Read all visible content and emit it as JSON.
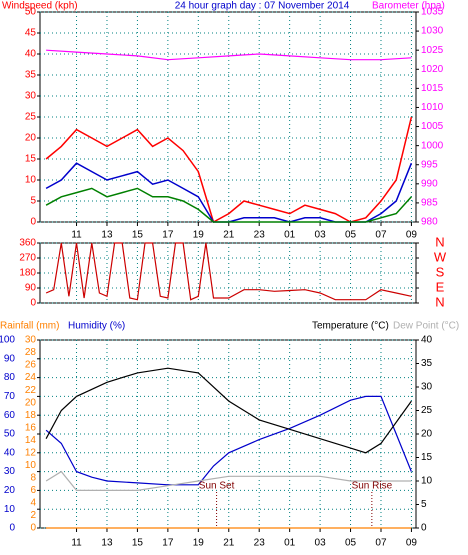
{
  "chart_data": [
    {
      "type": "line",
      "title": "24 hour graph day : 07 November 2014",
      "ylabel": "Windspeed (kph)",
      "y2label": "Barometer (hpa)",
      "xlim": [
        8.6,
        33.3
      ],
      "xticks": [
        11,
        13,
        15,
        17,
        19,
        21,
        23,
        {
          "value": 25,
          "label": "01"
        },
        {
          "value": 27,
          "label": "03"
        },
        {
          "value": 29,
          "label": "05"
        },
        {
          "value": 31,
          "label": "07"
        },
        {
          "value": 33,
          "label": "09"
        }
      ],
      "ylim": [
        0,
        50
      ],
      "yticks": [
        0,
        5,
        10,
        15,
        20,
        25,
        30,
        35,
        40,
        45,
        50
      ],
      "y2lim": [
        980,
        1035
      ],
      "y2ticks": [
        980,
        985,
        990,
        995,
        1000,
        1005,
        1010,
        1015,
        1020,
        1025,
        1030,
        1035
      ],
      "grid": true,
      "series": [
        {
          "color": "#ff0000",
          "x": [
            9,
            10,
            11,
            12,
            13,
            14,
            15,
            16,
            17,
            18,
            19,
            20,
            21,
            22,
            23,
            24,
            25,
            26,
            27,
            28,
            29,
            30,
            31,
            32,
            33
          ],
          "values": [
            15,
            18,
            22,
            20,
            18,
            20,
            22,
            18,
            20,
            17,
            12,
            0,
            2,
            5,
            4,
            3,
            2,
            4,
            3,
            2,
            0,
            1,
            5,
            10,
            25
          ]
        },
        {
          "color": "#0000cc",
          "x": [
            9,
            10,
            11,
            12,
            13,
            14,
            15,
            16,
            17,
            18,
            19,
            20,
            21,
            22,
            23,
            24,
            25,
            26,
            27,
            28,
            29,
            30,
            31,
            32,
            33
          ],
          "values": [
            8,
            10,
            14,
            12,
            10,
            11,
            12,
            9,
            10,
            8,
            6,
            0,
            0,
            1,
            1,
            1,
            0,
            1,
            1,
            0,
            0,
            0,
            2,
            5,
            14
          ]
        },
        {
          "color": "#008000",
          "x": [
            9,
            10,
            11,
            12,
            13,
            14,
            15,
            16,
            17,
            18,
            19,
            20,
            21,
            22,
            23,
            24,
            25,
            26,
            27,
            28,
            29,
            30,
            31,
            32,
            33
          ],
          "values": [
            4,
            6,
            7,
            8,
            6,
            7,
            8,
            6,
            6,
            5,
            3,
            0,
            0,
            0,
            0,
            0,
            0,
            0,
            0,
            0,
            0,
            0,
            1,
            2,
            6
          ]
        },
        {
          "color": "#ff00ff",
          "axis": "y2",
          "x": [
            9,
            11,
            13,
            15,
            17,
            19,
            21,
            23,
            25,
            27,
            29,
            31,
            33
          ],
          "values": [
            1025,
            1024.5,
            1024,
            1023.5,
            1022.5,
            1023,
            1023.5,
            1024,
            1023.5,
            1023,
            1022.5,
            1022.5,
            1023
          ]
        }
      ]
    },
    {
      "type": "line",
      "ylim": [
        0,
        360
      ],
      "yticks": [
        0,
        90,
        180,
        270,
        360
      ],
      "y2lim": [
        0,
        360
      ],
      "y2ticks": [
        {
          "value": 360,
          "label": "N"
        },
        {
          "value": 270,
          "label": "W"
        },
        {
          "value": 180,
          "label": "S"
        },
        {
          "value": 90,
          "label": "E"
        },
        {
          "value": 0,
          "label": "N"
        }
      ],
      "grid": true,
      "series": [
        {
          "color": "#cc0000",
          "x": [
            9,
            9.5,
            10,
            10.5,
            11,
            11.5,
            12,
            12.5,
            13,
            13.5,
            14,
            14.5,
            15,
            15.5,
            16,
            16.5,
            17,
            17.5,
            18,
            18.5,
            19,
            19.5,
            20,
            21,
            22,
            23,
            24,
            25,
            26,
            27,
            28,
            29,
            30,
            31,
            32,
            33
          ],
          "values": [
            60,
            80,
            360,
            40,
            360,
            30,
            360,
            60,
            40,
            360,
            360,
            30,
            20,
            360,
            360,
            40,
            30,
            360,
            360,
            20,
            40,
            360,
            30,
            30,
            80,
            80,
            70,
            75,
            80,
            60,
            20,
            20,
            20,
            80,
            60,
            40
          ]
        }
      ]
    },
    {
      "type": "line",
      "ylabel": "Humidity (%)",
      "y2label": "Temperature (°C)",
      "y3label": "Rainfall (mm)",
      "dewlabel": "Dew Point (°C)",
      "xlim": [
        8.6,
        33.3
      ],
      "xticks": [
        11,
        13,
        15,
        17,
        19,
        21,
        23,
        {
          "value": 25,
          "label": "01"
        },
        {
          "value": 27,
          "label": "03"
        },
        {
          "value": 29,
          "label": "05"
        },
        {
          "value": 31,
          "label": "07"
        },
        {
          "value": 33,
          "label": "09"
        }
      ],
      "ylim": [
        0,
        100
      ],
      "yticks": [
        0,
        10,
        20,
        30,
        40,
        50,
        60,
        70,
        80,
        90,
        100
      ],
      "y2lim": [
        0,
        40
      ],
      "y2ticks": [
        0,
        5,
        10,
        15,
        20,
        25,
        30,
        35,
        40
      ],
      "y3lim": [
        0,
        30
      ],
      "y3ticks": [
        0,
        2,
        4,
        6,
        8,
        10,
        12,
        14,
        16,
        18,
        20,
        22,
        24,
        26,
        28,
        30
      ],
      "grid": true,
      "annotations": [
        {
          "text": "Sun Set",
          "x": 20.2
        },
        {
          "text": "Sun Rise",
          "x": 30.4
        }
      ],
      "series": [
        {
          "color": "#0000cc",
          "x": [
            9,
            10,
            11,
            12,
            13,
            15,
            17,
            19,
            20,
            21,
            23,
            25,
            27,
            29,
            30,
            31,
            32,
            33
          ],
          "values": [
            52,
            45,
            30,
            27,
            25,
            24,
            23,
            23,
            33,
            40,
            47,
            53,
            60,
            68,
            70,
            70,
            50,
            30
          ]
        },
        {
          "color": "#000000",
          "axis": "y2",
          "x": [
            9,
            10,
            11,
            13,
            15,
            17,
            19,
            21,
            23,
            25,
            27,
            29,
            30,
            31,
            33
          ],
          "values": [
            19,
            25,
            28,
            31,
            33,
            34,
            33,
            27,
            23,
            21,
            19,
            17,
            16,
            18,
            27
          ]
        },
        {
          "color": "#b0b0b0",
          "axis": "y2",
          "x": [
            9,
            10,
            11,
            13,
            15,
            17,
            19,
            21,
            23,
            25,
            27,
            29,
            31,
            33
          ],
          "values": [
            10,
            12,
            8,
            8,
            8,
            9,
            10,
            11,
            11,
            11,
            11,
            10,
            10,
            10
          ]
        },
        {
          "color": "#ff8000",
          "axis": "y3",
          "x": [
            9,
            33
          ],
          "values": [
            0,
            0
          ]
        }
      ]
    }
  ]
}
